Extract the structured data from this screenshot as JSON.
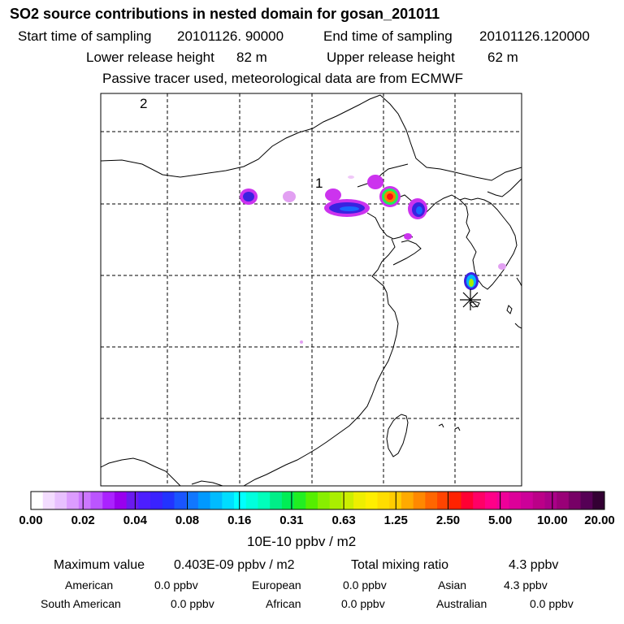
{
  "header": {
    "title": "SO2 source contributions in nested domain for gosan_201011",
    "start_label": "Start time of sampling",
    "start_value": "20101126. 90000",
    "end_label": "End time of sampling",
    "end_value": "20101126.120000",
    "lower_label": "Lower release height",
    "lower_value": "82 m",
    "upper_label": "Upper release height",
    "upper_value": "62 m",
    "note": "Passive tracer used, meteorological data are from ECMWF"
  },
  "map": {
    "panel_number": "2",
    "source_label": "1",
    "station_marker": "receptor-star",
    "plume_palette": {
      "magenta": "#cc33ee",
      "blue": "#3a22e0",
      "cyan": "#00b4ff",
      "green": "#22ee55",
      "orange": "#ff8000",
      "red": "#ff1010"
    }
  },
  "colorbar": {
    "labels": [
      "0.00",
      "0.02",
      "0.04",
      "0.08",
      "0.16",
      "0.31",
      "0.63",
      "1.25",
      "2.50",
      "5.00",
      "10.00",
      "20.00"
    ],
    "colors": [
      "#ffffff",
      "#f3dcff",
      "#e8c0ff",
      "#dc9cff",
      "#cc77ff",
      "#bb55ff",
      "#aa22ff",
      "#9900ee",
      "#6a1aee",
      "#4d1eff",
      "#3a22ff",
      "#2233ff",
      "#1a55ff",
      "#1177ff",
      "#0099ff",
      "#00bbff",
      "#00ddff",
      "#00ffff",
      "#00ffdd",
      "#00ffbb",
      "#00ee88",
      "#00ee55",
      "#22ee22",
      "#55ee00",
      "#88ee00",
      "#aaee00",
      "#ccee00",
      "#eeee00",
      "#ffee00",
      "#ffdd00",
      "#ffcc00",
      "#ffaa00",
      "#ff8800",
      "#ff6600",
      "#ff4400",
      "#ff2200",
      "#ff0033",
      "#ff0066",
      "#ff0088",
      "#ee0099",
      "#dd0099",
      "#cc0099",
      "#bb0088",
      "#aa0088",
      "#990077",
      "#770066",
      "#550055",
      "#330033"
    ],
    "units": "10E-10 ppbv / m2"
  },
  "stats": {
    "max_label": "Maximum value",
    "max_value": "0.403E-09 ppbv / m2",
    "total_label": "Total mixing ratio",
    "total_value": "4.3 ppbv",
    "regions": [
      {
        "name": "American",
        "value": "0.0 ppbv"
      },
      {
        "name": "European",
        "value": "0.0 ppbv"
      },
      {
        "name": "Asian",
        "value": "4.3 ppbv"
      },
      {
        "name": "South American",
        "value": "0.0 ppbv"
      },
      {
        "name": "African",
        "value": "0.0 ppbv"
      },
      {
        "name": "Australian",
        "value": "0.0 ppbv"
      }
    ]
  }
}
